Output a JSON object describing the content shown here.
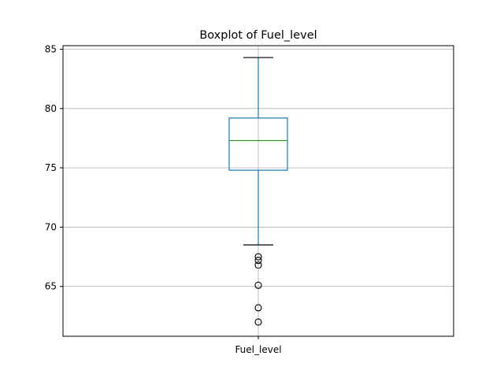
{
  "chart_data": {
    "type": "box",
    "title": "Boxplot of Fuel_level",
    "categories": [
      "Fuel_level"
    ],
    "ylim": [
      60.8,
      85.3
    ],
    "yticks": [
      65,
      70,
      75,
      80,
      85
    ],
    "grid": true,
    "boxes": [
      {
        "label": "Fuel_level",
        "whislo": 68.5,
        "q1": 74.8,
        "med": 77.3,
        "q3": 79.2,
        "whishi": 84.3,
        "fliers": [
          67.5,
          67.2,
          66.8,
          65.1,
          63.2,
          62.0
        ]
      }
    ]
  }
}
